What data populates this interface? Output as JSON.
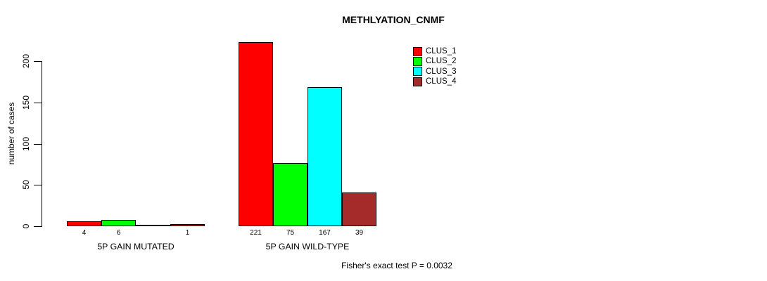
{
  "chart_data": {
    "type": "bar",
    "title": "METHLYATION_CNMF",
    "ylabel": "number of cases",
    "xlabel": "",
    "annotation": "Fisher's exact test P = 0.0032",
    "categories": [
      "5P GAIN MUTATED",
      "5P GAIN WILD-TYPE"
    ],
    "series": [
      {
        "name": "CLUS_1",
        "color": "#FF0000",
        "values": [
          4,
          221
        ]
      },
      {
        "name": "CLUS_2",
        "color": "#00FF00",
        "values": [
          6,
          75
        ]
      },
      {
        "name": "CLUS_3",
        "color": "#00FFFF",
        "values": [
          0,
          167
        ]
      },
      {
        "name": "CLUS_4",
        "color": "#A52A2A",
        "values": [
          1,
          39
        ]
      }
    ],
    "bar_value_labels": [
      [
        "4",
        "6",
        "",
        "1"
      ],
      [
        "221",
        "75",
        "167",
        "39"
      ]
    ],
    "yticks": [
      0,
      50,
      100,
      150,
      200
    ],
    "ylim": [
      0,
      200
    ],
    "grid": false,
    "legend": {
      "position": "top-right",
      "entries": [
        "CLUS_1",
        "CLUS_2",
        "CLUS_3",
        "CLUS_4"
      ]
    }
  }
}
